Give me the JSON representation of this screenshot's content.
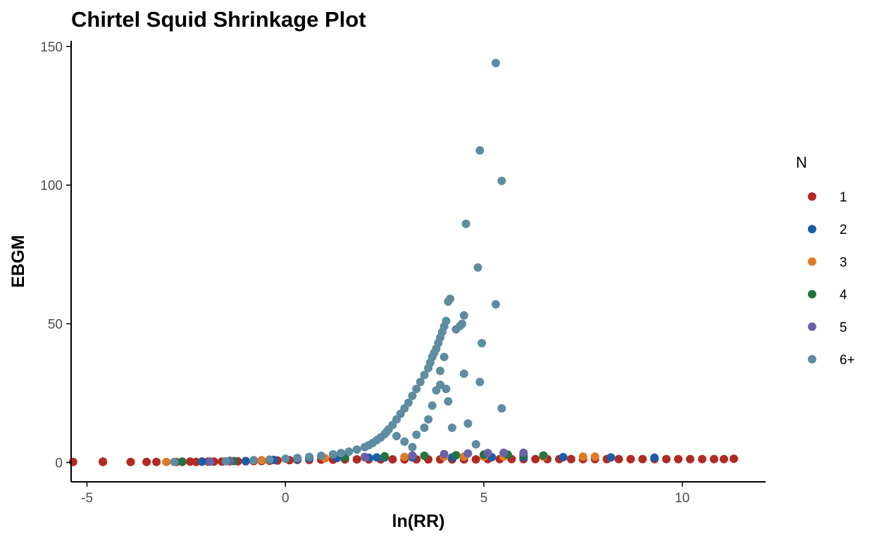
{
  "chart_data": {
    "type": "scatter",
    "title": "Chirtel Squid Shrinkage Plot",
    "xlabel": "ln(RR)",
    "ylabel": "EBGM",
    "xlim": [
      -5.4,
      12.1
    ],
    "ylim": [
      -7,
      152
    ],
    "x_ticks": [
      -5,
      0,
      5,
      10
    ],
    "y_ticks": [
      0,
      50,
      100,
      150
    ],
    "x_tick_labels": [
      "-5",
      "0",
      "5",
      "10"
    ],
    "y_tick_labels": [
      "0",
      "50",
      "100",
      "150"
    ],
    "grid": false,
    "legend": {
      "title": "N",
      "placement": "right",
      "entries": [
        {
          "label": "1",
          "color": "#B22A22"
        },
        {
          "label": "2",
          "color": "#1A5EAA"
        },
        {
          "label": "3",
          "color": "#DE7B25"
        },
        {
          "label": "4",
          "color": "#237440"
        },
        {
          "label": "5",
          "color": "#6B62A5"
        },
        {
          "label": "6+",
          "color": "#5E8CA0"
        }
      ]
    },
    "series": [
      {
        "name": "1",
        "color": "#B22A22",
        "x": [
          -5.35,
          -4.6,
          -4.6,
          -3.9,
          -3.5,
          -3.25,
          -2.75,
          -2.6,
          -2.4,
          -2.25,
          -2.1,
          -1.95,
          -1.8,
          -1.6,
          -1.4,
          -1.2,
          -1.0,
          -0.8,
          -0.6,
          -0.4,
          -0.2,
          0.1,
          0.3,
          0.6,
          0.9,
          1.2,
          1.5,
          1.8,
          2.1,
          2.4,
          2.7,
          3.0,
          3.3,
          3.6,
          3.9,
          4.2,
          4.5,
          4.8,
          5.1,
          5.4,
          5.7,
          6.0,
          6.3,
          6.6,
          6.9,
          7.2,
          7.5,
          7.8,
          8.1,
          8.4,
          8.7,
          9.0,
          9.3,
          9.6,
          9.9,
          10.2,
          10.5,
          10.8,
          11.05,
          11.3
        ],
        "y": [
          0.2,
          0.2,
          0.3,
          0.2,
          0.2,
          0.2,
          0.2,
          0.2,
          0.3,
          0.2,
          0.3,
          0.3,
          0.3,
          0.3,
          0.4,
          0.4,
          0.4,
          0.5,
          0.5,
          0.6,
          0.7,
          0.8,
          0.9,
          0.9,
          1.0,
          1.0,
          1.1,
          1.1,
          1.1,
          1.1,
          1.1,
          1.1,
          1.1,
          1.1,
          1.1,
          1.1,
          1.1,
          1.1,
          1.2,
          1.2,
          1.2,
          1.2,
          1.2,
          1.2,
          1.2,
          1.2,
          1.2,
          1.2,
          1.2,
          1.2,
          1.2,
          1.2,
          1.2,
          1.2,
          1.2,
          1.2,
          1.2,
          1.2,
          1.2,
          1.3
        ]
      },
      {
        "name": "2",
        "color": "#1A5EAA",
        "x": [
          -2.1,
          -1.0,
          -0.3,
          0.3,
          0.6,
          1.3,
          2.1,
          2.3,
          2.5,
          3.2,
          4.2,
          5.2,
          6.0,
          7.0,
          8.2,
          9.3
        ],
        "y": [
          0.3,
          0.5,
          0.9,
          1.2,
          1.5,
          1.6,
          1.7,
          1.8,
          1.8,
          1.8,
          1.8,
          1.9,
          1.9,
          1.9,
          1.8,
          1.7
        ]
      },
      {
        "name": "3",
        "color": "#DE7B25",
        "x": [
          -3.0,
          -0.6,
          1.0,
          2.0,
          3.0,
          4.0,
          4.5,
          5.0,
          5.5,
          6.5,
          7.5,
          7.8
        ],
        "y": [
          0.2,
          0.8,
          1.5,
          1.8,
          2.0,
          2.1,
          2.1,
          2.1,
          2.1,
          2.1,
          2.1,
          2.1
        ]
      },
      {
        "name": "4",
        "color": "#237440",
        "x": [
          -2.6,
          -1.3,
          1.5,
          2.5,
          3.5,
          4.3,
          5.0,
          5.6,
          6.0,
          6.5
        ],
        "y": [
          0.3,
          0.5,
          1.8,
          2.2,
          2.4,
          2.6,
          2.8,
          2.8,
          2.6,
          2.5
        ]
      },
      {
        "name": "5",
        "color": "#6B62A5",
        "x": [
          -1.9,
          -1.4,
          2.0,
          3.2,
          4.0,
          4.6,
          5.1,
          5.5,
          6.0
        ],
        "y": [
          0.3,
          0.6,
          2.0,
          2.5,
          3.0,
          3.2,
          3.4,
          3.5,
          3.5
        ]
      },
      {
        "name": "6+",
        "color": "#5E8CA0",
        "x": [
          -2.8,
          -1.5,
          -0.8,
          -0.4,
          0.0,
          0.3,
          0.6,
          0.9,
          1.2,
          1.4,
          1.6,
          1.8,
          2.0,
          2.1,
          2.2,
          2.3,
          2.4,
          2.5,
          2.55,
          2.6,
          2.7,
          2.8,
          2.9,
          3.0,
          3.1,
          3.2,
          3.3,
          3.4,
          3.5,
          3.6,
          3.65,
          3.7,
          3.75,
          3.8,
          3.85,
          3.9,
          3.95,
          4.0,
          4.05,
          4.1,
          4.15,
          4.3,
          4.4,
          4.45,
          4.5,
          4.55,
          4.85,
          4.9,
          4.95,
          5.3,
          5.3,
          5.45,
          5.45,
          2.8,
          3.0,
          3.2,
          3.3,
          3.5,
          3.6,
          3.7,
          3.8,
          3.9,
          3.9,
          4.0,
          4.05,
          4.1,
          4.2,
          4.5,
          4.6,
          4.8,
          4.9
        ],
        "y": [
          0.2,
          0.4,
          0.8,
          1.0,
          1.3,
          1.6,
          2.0,
          2.4,
          2.9,
          3.4,
          3.9,
          4.6,
          5.5,
          6.2,
          7.0,
          8.0,
          9.0,
          10.2,
          11.0,
          11.9,
          13.5,
          15.5,
          17.5,
          19.5,
          21.5,
          24.0,
          26.5,
          29.0,
          31.5,
          34.0,
          36.0,
          38.0,
          39.5,
          41.0,
          43.0,
          45.0,
          47.0,
          49.0,
          51.0,
          58.0,
          59.0,
          48.0,
          49.2,
          50.0,
          53.0,
          86.0,
          70.3,
          112.5,
          43.0,
          144.0,
          57.0,
          101.5,
          19.5,
          9.5,
          7.5,
          5.5,
          10.0,
          12.5,
          15.5,
          20.5,
          26.0,
          28.0,
          33.0,
          38.0,
          26.5,
          22.0,
          12.5,
          32.0,
          14.0,
          6.5,
          29.0
        ]
      }
    ]
  }
}
